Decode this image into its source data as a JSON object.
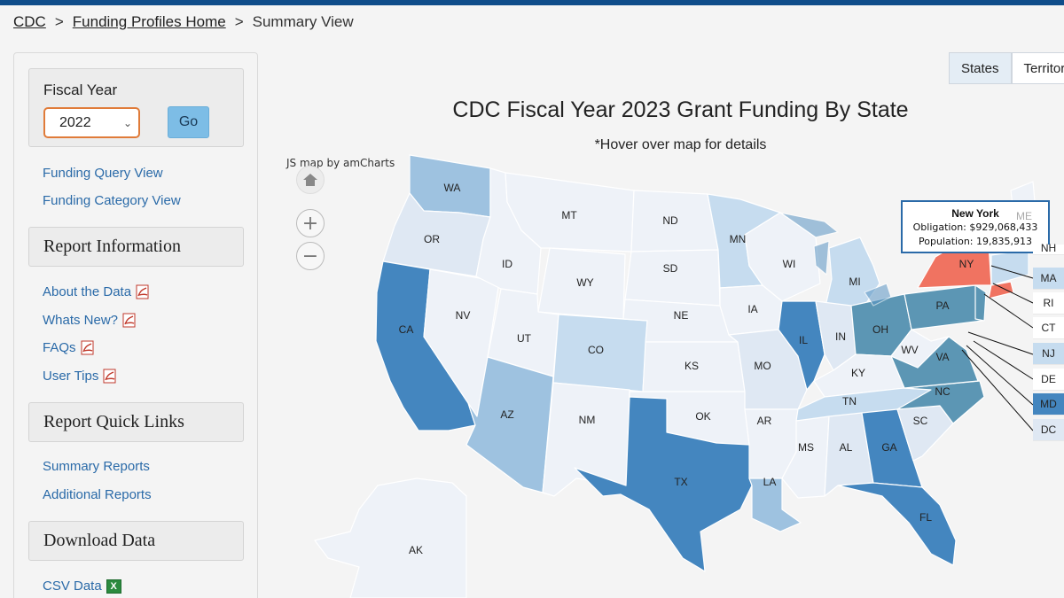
{
  "breadcrumb": {
    "home": "CDC",
    "profiles": "Funding Profiles Home",
    "current": "Summary View",
    "separator": ">"
  },
  "sidebar": {
    "fiscal_year": {
      "label": "Fiscal Year",
      "value": "2022",
      "go_label": "Go"
    },
    "top_links": [
      "Funding Query View",
      "Funding Category View"
    ],
    "report_information": {
      "title": "Report Information",
      "links": [
        "About the Data",
        "Whats New?",
        "FAQs",
        "User Tips"
      ]
    },
    "report_quick_links": {
      "title": "Report Quick Links",
      "links": [
        "Summary Reports",
        "Additional Reports"
      ]
    },
    "download_data": {
      "title": "Download Data",
      "links": [
        "CSV Data"
      ]
    }
  },
  "tabs": [
    "States",
    "Territori"
  ],
  "map": {
    "title": "CDC Fiscal Year 2023 Grant Funding By State",
    "subtitle": "*Hover over map for details",
    "credit": "JS map by amCharts",
    "colors": {
      "lightest": "#eef2f8",
      "light": "#dfe8f3",
      "medium_light": "#c6dcef",
      "medium": "#9ec2e0",
      "darker": "#5a95c3",
      "dark": "#4486bf",
      "teal": "#5c96b4",
      "highlight": "#f07361",
      "outline": "#ffffff"
    },
    "state_labels": [
      "WA",
      "OR",
      "CA",
      "NV",
      "ID",
      "MT",
      "WY",
      "UT",
      "AZ",
      "CO",
      "NM",
      "ND",
      "SD",
      "NE",
      "KS",
      "OK",
      "TX",
      "MN",
      "IA",
      "MO",
      "AR",
      "LA",
      "WI",
      "IL",
      "MI",
      "IN",
      "OH",
      "KY",
      "TN",
      "MS",
      "AL",
      "GA",
      "FL",
      "SC",
      "NC",
      "VA",
      "WV",
      "PA",
      "NY",
      "AK"
    ],
    "ne_labels": [
      "NH",
      "MA",
      "RI",
      "CT",
      "NJ",
      "DE",
      "MD",
      "DC"
    ],
    "tooltip": {
      "state": "New York",
      "obligation": "Obligation: $929,068,433",
      "population": "Population: 19,835,913",
      "faded_label": "ME"
    }
  }
}
